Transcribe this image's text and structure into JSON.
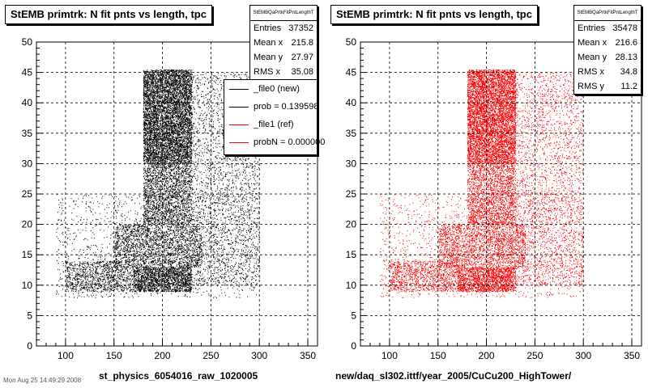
{
  "footer_text": "Mon Aug 25 14:49:29 2008",
  "chart_data": [
    {
      "type": "scatter",
      "title": "StEMB primtrk: N fit pnts vs length, tpc",
      "xlabel": "st_physics_6054016_raw_1020005",
      "ylabel": "",
      "xlim": [
        70,
        360
      ],
      "ylim": [
        0,
        50
      ],
      "x_ticks": [
        100,
        150,
        200,
        250,
        300,
        350
      ],
      "y_ticks": [
        0,
        5,
        10,
        15,
        20,
        25,
        30,
        35,
        40,
        45,
        50
      ],
      "grid": true,
      "marker_color": "#000000",
      "stats": {
        "name": "StEMBQaPrtkFitPntLengthT",
        "rows": [
          {
            "label": "Entries",
            "value": "37352"
          },
          {
            "label": "Mean x",
            "value": "215.8"
          },
          {
            "label": "Mean y",
            "value": "27.97"
          },
          {
            "label": "RMS x",
            "value": "35.08"
          }
        ]
      },
      "legend": {
        "placement": "top-right",
        "entries": [
          {
            "label": "_file0 (new)",
            "color": "#000000"
          },
          {
            "label": "prob = 0.139598",
            "color": "#000000"
          },
          {
            "label": "_file1 (ref)",
            "color": "#ff0000"
          },
          {
            "label": "probN = 0.000000",
            "color": "#ff0000"
          }
        ]
      },
      "density_regions": [
        {
          "x": [
            180,
            230
          ],
          "y": [
            30,
            45.5
          ],
          "density": 1.0
        },
        {
          "x": [
            180,
            230
          ],
          "y": [
            20,
            30
          ],
          "density": 0.5
        },
        {
          "x": [
            150,
            240
          ],
          "y": [
            13,
            20
          ],
          "density": 0.4
        },
        {
          "x": [
            170,
            230
          ],
          "y": [
            9,
            13
          ],
          "density": 0.9
        },
        {
          "x": [
            100,
            170
          ],
          "y": [
            9,
            14
          ],
          "density": 0.35
        },
        {
          "x": [
            230,
            300
          ],
          "y": [
            10,
            45
          ],
          "density": 0.12
        },
        {
          "x": [
            90,
            300
          ],
          "y": [
            8,
            25
          ],
          "density": 0.05
        }
      ]
    },
    {
      "type": "scatter",
      "title": "StEMB primtrk: N fit pnts vs length, tpc",
      "xlabel": "new/daq_sl302.ittf/year_2005/CuCu200_HighTower/",
      "ylabel": "",
      "xlim": [
        70,
        360
      ],
      "ylim": [
        0,
        50
      ],
      "x_ticks": [
        100,
        150,
        200,
        250,
        300,
        350
      ],
      "y_ticks": [
        0,
        5,
        10,
        15,
        20,
        25,
        30,
        35,
        40,
        45,
        50
      ],
      "grid": true,
      "marker_color": "#ff0000",
      "stats": {
        "name": "StEMBQaPrtkFitPntLengthT",
        "rows": [
          {
            "label": "Entries",
            "value": "35478"
          },
          {
            "label": "Mean x",
            "value": "216.6"
          },
          {
            "label": "Mean y",
            "value": "28.13"
          },
          {
            "label": "RMS x",
            "value": "34.8"
          },
          {
            "label": "RMS y",
            "value": "11.2"
          }
        ]
      },
      "density_regions": [
        {
          "x": [
            180,
            230
          ],
          "y": [
            30,
            45.5
          ],
          "density": 1.0
        },
        {
          "x": [
            180,
            230
          ],
          "y": [
            20,
            30
          ],
          "density": 0.5
        },
        {
          "x": [
            150,
            240
          ],
          "y": [
            13,
            20
          ],
          "density": 0.4
        },
        {
          "x": [
            170,
            230
          ],
          "y": [
            9,
            13
          ],
          "density": 0.9
        },
        {
          "x": [
            100,
            170
          ],
          "y": [
            9,
            14
          ],
          "density": 0.35
        },
        {
          "x": [
            230,
            300
          ],
          "y": [
            10,
            45
          ],
          "density": 0.12
        },
        {
          "x": [
            90,
            300
          ],
          "y": [
            8,
            25
          ],
          "density": 0.05
        }
      ]
    }
  ]
}
